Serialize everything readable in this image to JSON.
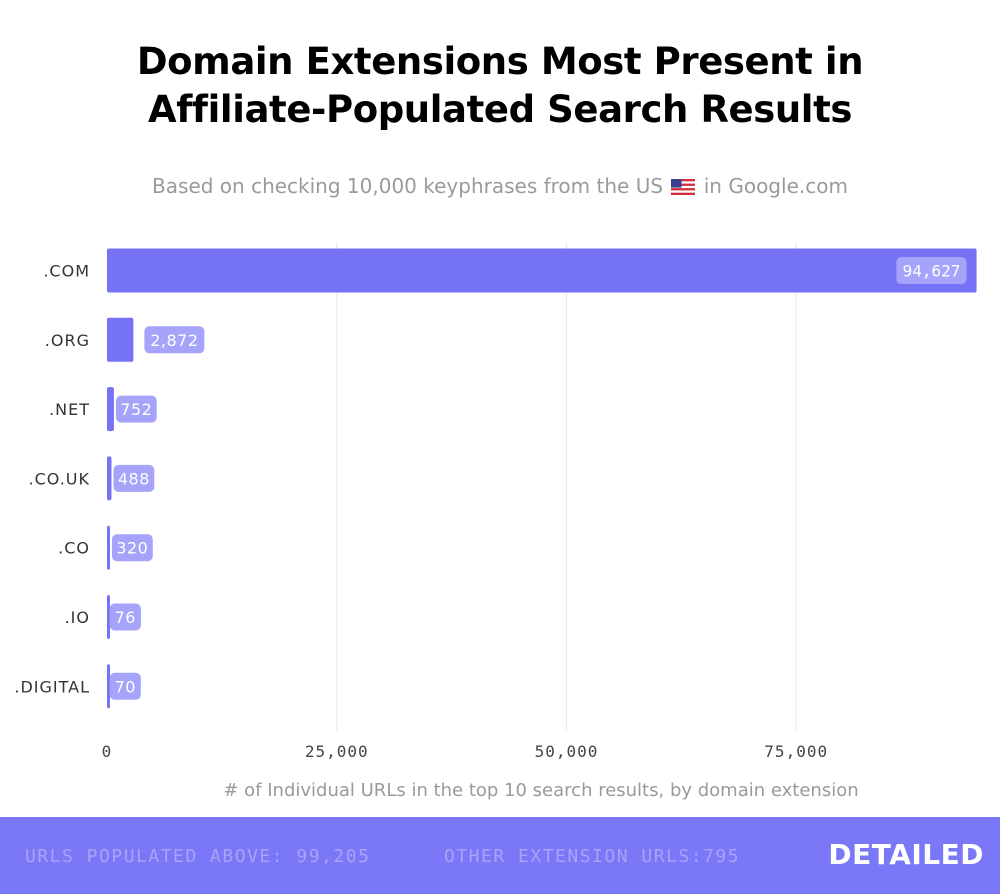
{
  "header": {
    "title_line1": "Domain Extensions Most Present in",
    "title_line2": "Affiliate-Populated Search Results",
    "subtitle_before": "Based on checking 10,000 keyphrases from the US",
    "subtitle_after": "in Google.com",
    "flag_icon": "us-flag-icon"
  },
  "chart_data": {
    "type": "bar",
    "orientation": "horizontal",
    "categories": [
      ".COM",
      ".ORG",
      ".NET",
      ".CO.UK",
      ".CO",
      ".IO",
      ".DIGITAL"
    ],
    "values": [
      94627,
      2872,
      752,
      488,
      320,
      76,
      70
    ],
    "value_labels": [
      "94,627",
      "2,872",
      "752",
      "488",
      "320",
      "76",
      "70"
    ],
    "xlabel": "# of Individual URLs in the top 10 search results, by domain extension",
    "ylabel": "",
    "xlim": [
      0,
      95000
    ],
    "xticks": [
      0,
      25000,
      50000,
      75000
    ],
    "xtick_labels": [
      "0",
      "25,000",
      "50,000",
      "75,000"
    ],
    "grid": true,
    "bar_color": "#7672f5",
    "label_bg_color": "#a6a3fa"
  },
  "footer": {
    "urls_populated": "URLS POPULATED ABOVE: 99,205",
    "other_extensions": "OTHER EXTENSION URLS:795",
    "logo": "DETAILED"
  }
}
